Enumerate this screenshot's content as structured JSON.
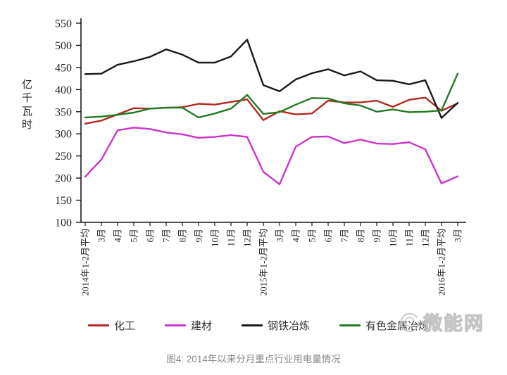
{
  "caption": "图4: 2014年以来分月重点行业用电量情况",
  "watermark": {
    "text": "微能网"
  },
  "chart_data": {
    "type": "line",
    "title": "",
    "xlabel": "",
    "ylabel": "亿千瓦时",
    "ylim": [
      100,
      550
    ],
    "yticks": [
      100,
      150,
      200,
      250,
      300,
      350,
      400,
      450,
      500,
      550
    ],
    "grid": false,
    "legend_position": "bottom",
    "categories": [
      "2014年1-2月平均",
      "3月",
      "4月",
      "5月",
      "6月",
      "7月",
      "8月",
      "9月",
      "10月",
      "11月",
      "12月",
      "2015年1-2月平均",
      "3月",
      "4月",
      "5月",
      "6月",
      "7月",
      "8月",
      "9月",
      "10月",
      "11月",
      "12月",
      "2016年1-2月平均",
      "3月"
    ],
    "series": [
      {
        "name": "化工",
        "slug": "chemical",
        "color": "#b22a20",
        "values": [
          323,
          330,
          344,
          358,
          357,
          359,
          360,
          368,
          366,
          372,
          378,
          331,
          351,
          344,
          346,
          375,
          371,
          371,
          375,
          361,
          377,
          382,
          352,
          369
        ]
      },
      {
        "name": "建材",
        "slug": "building-materials",
        "color": "#cc33cc",
        "values": [
          203,
          242,
          308,
          314,
          311,
          303,
          299,
          291,
          293,
          297,
          293,
          214,
          186,
          271,
          293,
          294,
          279,
          287,
          278,
          277,
          281,
          265,
          188,
          204
        ]
      },
      {
        "name": "钢铁冶炼",
        "slug": "steel-smelting",
        "color": "#1a1a1a",
        "values": [
          435,
          436,
          456,
          464,
          474,
          491,
          479,
          461,
          461,
          475,
          513,
          410,
          396,
          423,
          437,
          446,
          432,
          441,
          421,
          420,
          412,
          421,
          336,
          370
        ]
      },
      {
        "name": "有色金属冶炼",
        "slug": "nonferrous-metal-smelting",
        "color": "#237a23",
        "values": [
          337,
          339,
          343,
          348,
          357,
          359,
          359,
          337,
          346,
          357,
          388,
          345,
          349,
          366,
          381,
          380,
          369,
          364,
          350,
          355,
          349,
          350,
          353,
          436
        ]
      }
    ]
  }
}
